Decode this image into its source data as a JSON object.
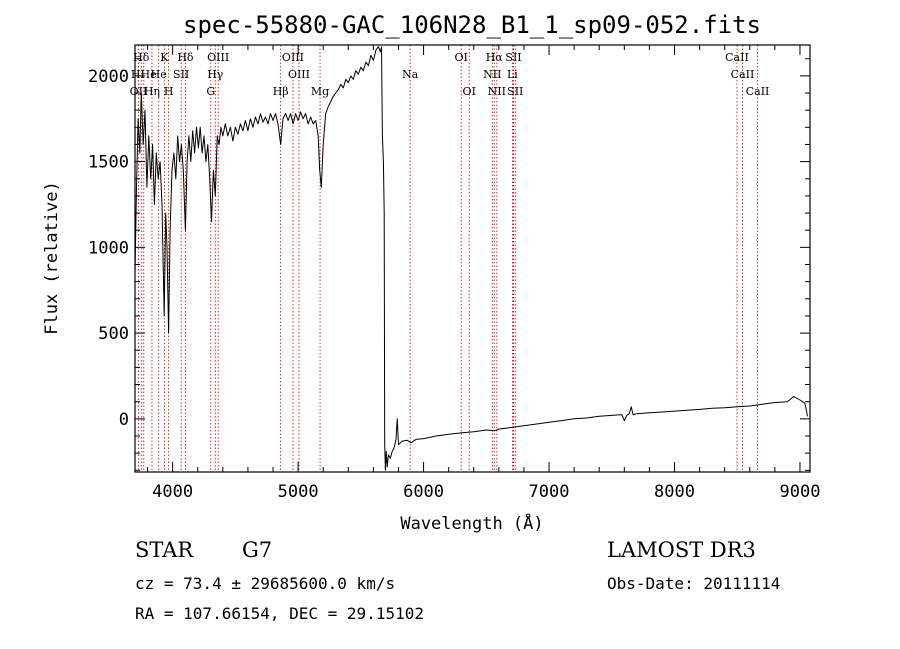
{
  "chart_data": {
    "type": "line",
    "title": "spec-55880-GAC_106N28_B1_1_sp09-052.fits",
    "xlabel": "Wavelength (Å)",
    "ylabel": "Flux (relative)",
    "xlim": [
      3700,
      9080
    ],
    "ylim": [
      -310,
      2180
    ],
    "xticks": [
      4000,
      5000,
      6000,
      7000,
      8000,
      9000
    ],
    "yticks": [
      0,
      500,
      1000,
      1500,
      2000
    ],
    "x_minor_step": 200,
    "y_minor_step": 100,
    "line_color": "#000000",
    "marker_color": "#cc0000",
    "spectrum": [
      {
        "x": 3700,
        "y": 850
      },
      {
        "x": 3712,
        "y": 1350
      },
      {
        "x": 3725,
        "y": 1750
      },
      {
        "x": 3738,
        "y": 1550
      },
      {
        "x": 3750,
        "y": 1900
      },
      {
        "x": 3765,
        "y": 1600
      },
      {
        "x": 3780,
        "y": 1800
      },
      {
        "x": 3795,
        "y": 1350
      },
      {
        "x": 3810,
        "y": 1650
      },
      {
        "x": 3825,
        "y": 1400
      },
      {
        "x": 3840,
        "y": 1600
      },
      {
        "x": 3855,
        "y": 1250
      },
      {
        "x": 3870,
        "y": 1550
      },
      {
        "x": 3885,
        "y": 1400
      },
      {
        "x": 3900,
        "y": 1500
      },
      {
        "x": 3915,
        "y": 1250
      },
      {
        "x": 3933,
        "y": 600
      },
      {
        "x": 3945,
        "y": 1200
      },
      {
        "x": 3955,
        "y": 1000
      },
      {
        "x": 3968,
        "y": 500
      },
      {
        "x": 3980,
        "y": 1100
      },
      {
        "x": 3995,
        "y": 1450
      },
      {
        "x": 4010,
        "y": 1550
      },
      {
        "x": 4025,
        "y": 1400
      },
      {
        "x": 4040,
        "y": 1650
      },
      {
        "x": 4055,
        "y": 1500
      },
      {
        "x": 4070,
        "y": 1600
      },
      {
        "x": 4085,
        "y": 1450
      },
      {
        "x": 4102,
        "y": 1100
      },
      {
        "x": 4115,
        "y": 1500
      },
      {
        "x": 4130,
        "y": 1650
      },
      {
        "x": 4145,
        "y": 1500
      },
      {
        "x": 4160,
        "y": 1680
      },
      {
        "x": 4175,
        "y": 1550
      },
      {
        "x": 4190,
        "y": 1700
      },
      {
        "x": 4205,
        "y": 1580
      },
      {
        "x": 4220,
        "y": 1700
      },
      {
        "x": 4235,
        "y": 1550
      },
      {
        "x": 4250,
        "y": 1650
      },
      {
        "x": 4265,
        "y": 1500
      },
      {
        "x": 4280,
        "y": 1600
      },
      {
        "x": 4295,
        "y": 1400
      },
      {
        "x": 4310,
        "y": 1150
      },
      {
        "x": 4325,
        "y": 1450
      },
      {
        "x": 4340,
        "y": 1300
      },
      {
        "x": 4355,
        "y": 1650
      },
      {
        "x": 4370,
        "y": 1600
      },
      {
        "x": 4385,
        "y": 1700
      },
      {
        "x": 4400,
        "y": 1650
      },
      {
        "x": 4420,
        "y": 1720
      },
      {
        "x": 4440,
        "y": 1650
      },
      {
        "x": 4460,
        "y": 1700
      },
      {
        "x": 4480,
        "y": 1620
      },
      {
        "x": 4500,
        "y": 1700
      },
      {
        "x": 4520,
        "y": 1660
      },
      {
        "x": 4540,
        "y": 1720
      },
      {
        "x": 4560,
        "y": 1680
      },
      {
        "x": 4580,
        "y": 1740
      },
      {
        "x": 4600,
        "y": 1680
      },
      {
        "x": 4620,
        "y": 1750
      },
      {
        "x": 4640,
        "y": 1700
      },
      {
        "x": 4660,
        "y": 1760
      },
      {
        "x": 4680,
        "y": 1720
      },
      {
        "x": 4700,
        "y": 1780
      },
      {
        "x": 4720,
        "y": 1730
      },
      {
        "x": 4740,
        "y": 1760
      },
      {
        "x": 4760,
        "y": 1720
      },
      {
        "x": 4780,
        "y": 1780
      },
      {
        "x": 4800,
        "y": 1740
      },
      {
        "x": 4820,
        "y": 1780
      },
      {
        "x": 4840,
        "y": 1720
      },
      {
        "x": 4861,
        "y": 1600
      },
      {
        "x": 4880,
        "y": 1750
      },
      {
        "x": 4900,
        "y": 1780
      },
      {
        "x": 4920,
        "y": 1740
      },
      {
        "x": 4940,
        "y": 1780
      },
      {
        "x": 4960,
        "y": 1720
      },
      {
        "x": 4980,
        "y": 1780
      },
      {
        "x": 5000,
        "y": 1740
      },
      {
        "x": 5020,
        "y": 1790
      },
      {
        "x": 5040,
        "y": 1750
      },
      {
        "x": 5060,
        "y": 1780
      },
      {
        "x": 5080,
        "y": 1720
      },
      {
        "x": 5100,
        "y": 1760
      },
      {
        "x": 5120,
        "y": 1720
      },
      {
        "x": 5140,
        "y": 1740
      },
      {
        "x": 5160,
        "y": 1650
      },
      {
        "x": 5172,
        "y": 1450
      },
      {
        "x": 5185,
        "y": 1350
      },
      {
        "x": 5200,
        "y": 1600
      },
      {
        "x": 5220,
        "y": 1780
      },
      {
        "x": 5240,
        "y": 1820
      },
      {
        "x": 5260,
        "y": 1850
      },
      {
        "x": 5280,
        "y": 1880
      },
      {
        "x": 5300,
        "y": 1900
      },
      {
        "x": 5320,
        "y": 1920
      },
      {
        "x": 5340,
        "y": 1950
      },
      {
        "x": 5360,
        "y": 1930
      },
      {
        "x": 5380,
        "y": 1980
      },
      {
        "x": 5400,
        "y": 1960
      },
      {
        "x": 5420,
        "y": 2000
      },
      {
        "x": 5440,
        "y": 1980
      },
      {
        "x": 5460,
        "y": 2030
      },
      {
        "x": 5480,
        "y": 2010
      },
      {
        "x": 5500,
        "y": 2050
      },
      {
        "x": 5520,
        "y": 2030
      },
      {
        "x": 5540,
        "y": 2080
      },
      {
        "x": 5560,
        "y": 2060
      },
      {
        "x": 5580,
        "y": 2120
      },
      {
        "x": 5600,
        "y": 2090
      },
      {
        "x": 5620,
        "y": 2150
      },
      {
        "x": 5640,
        "y": 2170
      },
      {
        "x": 5655,
        "y": 2140
      },
      {
        "x": 5665,
        "y": 2170
      },
      {
        "x": 5672,
        "y": 1650
      },
      {
        "x": 5680,
        "y": 1500
      },
      {
        "x": 5686,
        "y": 1200
      },
      {
        "x": 5690,
        "y": -150
      },
      {
        "x": 5696,
        "y": -300
      },
      {
        "x": 5702,
        "y": -190
      },
      {
        "x": 5710,
        "y": -280
      },
      {
        "x": 5720,
        "y": -210
      },
      {
        "x": 5735,
        "y": -230
      },
      {
        "x": 5750,
        "y": -190
      },
      {
        "x": 5765,
        "y": -170
      },
      {
        "x": 5780,
        "y": -120
      },
      {
        "x": 5790,
        "y": 0
      },
      {
        "x": 5800,
        "y": -150
      },
      {
        "x": 5830,
        "y": -130
      },
      {
        "x": 5870,
        "y": -125
      },
      {
        "x": 5900,
        "y": -140
      },
      {
        "x": 5940,
        "y": -120
      },
      {
        "x": 6000,
        "y": -115
      },
      {
        "x": 6100,
        "y": -100
      },
      {
        "x": 6200,
        "y": -90
      },
      {
        "x": 6300,
        "y": -82
      },
      {
        "x": 6400,
        "y": -75
      },
      {
        "x": 6500,
        "y": -65
      },
      {
        "x": 6563,
        "y": -70
      },
      {
        "x": 6600,
        "y": -60
      },
      {
        "x": 6700,
        "y": -50
      },
      {
        "x": 6800,
        "y": -40
      },
      {
        "x": 6900,
        "y": -30
      },
      {
        "x": 7000,
        "y": -20
      },
      {
        "x": 7100,
        "y": -10
      },
      {
        "x": 7200,
        "y": 0
      },
      {
        "x": 7300,
        "y": 5
      },
      {
        "x": 7400,
        "y": 15
      },
      {
        "x": 7500,
        "y": 20
      },
      {
        "x": 7580,
        "y": 25
      },
      {
        "x": 7600,
        "y": -10
      },
      {
        "x": 7620,
        "y": 20
      },
      {
        "x": 7640,
        "y": 30
      },
      {
        "x": 7655,
        "y": 70
      },
      {
        "x": 7670,
        "y": 25
      },
      {
        "x": 7700,
        "y": 30
      },
      {
        "x": 7800,
        "y": 35
      },
      {
        "x": 7900,
        "y": 40
      },
      {
        "x": 8000,
        "y": 45
      },
      {
        "x": 8100,
        "y": 50
      },
      {
        "x": 8200,
        "y": 55
      },
      {
        "x": 8300,
        "y": 62
      },
      {
        "x": 8400,
        "y": 65
      },
      {
        "x": 8500,
        "y": 70
      },
      {
        "x": 8600,
        "y": 75
      },
      {
        "x": 8700,
        "y": 85
      },
      {
        "x": 8800,
        "y": 95
      },
      {
        "x": 8900,
        "y": 100
      },
      {
        "x": 8950,
        "y": 130
      },
      {
        "x": 9000,
        "y": 110
      },
      {
        "x": 9040,
        "y": 90
      },
      {
        "x": 9060,
        "y": 15
      }
    ],
    "lines": [
      {
        "label": "Hδ",
        "x": 3750,
        "row": 1
      },
      {
        "label": "HHe",
        "x": 3770,
        "row": 2
      },
      {
        "label": "OII",
        "x": 3728,
        "row": 3
      },
      {
        "label": "Hη",
        "x": 3835,
        "row": 3
      },
      {
        "label": "K",
        "x": 3934,
        "row": 1
      },
      {
        "label": "He",
        "x": 3889,
        "row": 2
      },
      {
        "label": "H",
        "x": 3968,
        "row": 3
      },
      {
        "label": "Hδ",
        "x": 4102,
        "row": 1
      },
      {
        "label": "SII",
        "x": 4068,
        "row": 2
      },
      {
        "label": "OIII",
        "x": 4363,
        "row": 1
      },
      {
        "label": "Hγ",
        "x": 4340,
        "row": 2
      },
      {
        "label": "G",
        "x": 4304,
        "row": 3
      },
      {
        "label": "Hβ",
        "x": 4861,
        "row": 3
      },
      {
        "label": "OIII",
        "x": 4959,
        "row": 1
      },
      {
        "label": "OIII",
        "x": 5007,
        "row": 2
      },
      {
        "label": "Mg",
        "x": 5175,
        "row": 3
      },
      {
        "label": "Na",
        "x": 5893,
        "row": 2
      },
      {
        "label": "OI",
        "x": 6300,
        "row": 1
      },
      {
        "label": "OI",
        "x": 6364,
        "row": 3
      },
      {
        "label": "Hα",
        "x": 6563,
        "row": 1
      },
      {
        "label": "NII",
        "x": 6548,
        "row": 2
      },
      {
        "label": "NII",
        "x": 6584,
        "row": 3
      },
      {
        "label": "SII",
        "x": 6717,
        "row": 1
      },
      {
        "label": "Li",
        "x": 6708,
        "row": 2
      },
      {
        "label": "SII",
        "x": 6731,
        "row": 3
      },
      {
        "label": "CaII",
        "x": 8498,
        "row": 1
      },
      {
        "label": "CaII",
        "x": 8542,
        "row": 2
      },
      {
        "label": "CaII",
        "x": 8662,
        "row": 3
      }
    ]
  },
  "info": {
    "class_label": "STAR",
    "subclass": "G7",
    "survey": "LAMOST DR3",
    "cz_line": "cz = 73.4 ± 29685600.0 km/s",
    "obs_date": "Obs-Date: 20111114",
    "coords": "RA = 107.66154, DEC =  29.15102"
  }
}
